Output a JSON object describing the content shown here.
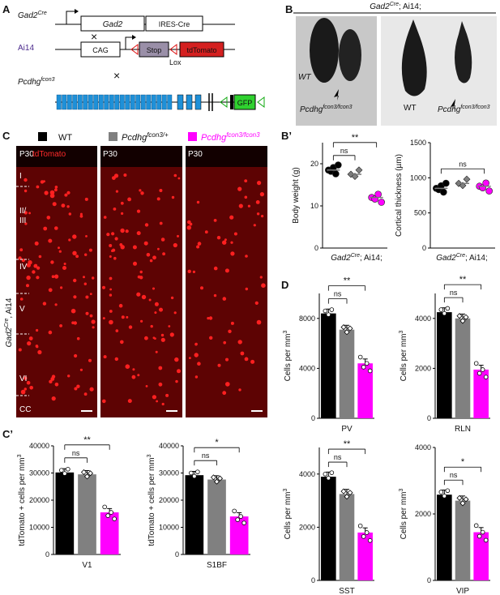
{
  "panels": {
    "A": "A",
    "B": "B",
    "Bp": "B’",
    "C": "C",
    "Cp": "C’",
    "D": "D"
  },
  "schematic": {
    "gad2_line": "Gad2",
    "gad2_sup": "Cre",
    "gad2_box": "Gad2",
    "ires_box": "IRES-Cre",
    "ai14_line": "Ai14",
    "cag_box": "CAG",
    "stop_box": "Stop",
    "tdtomato_box": "tdTomato",
    "lox": "Lox",
    "pcdh_line": "Pcdhg",
    "pcdh_sup": "fcon3",
    "gfp_box": "GFP",
    "cross": "×"
  },
  "photos": {
    "header": "Gad2",
    "header_sup": "Cre",
    "header_tail": "; Ai14;",
    "wt": "WT",
    "mut": "Pcdhg",
    "mut_sup": "fcon3/fcon3",
    "wt2": "WT",
    "mut2": "Pcdhg",
    "mut2_sup": "fcon3/fcon3"
  },
  "legend": {
    "wt": "WT",
    "het": "Pcdhg",
    "het_sup": "fcon3/+",
    "hom": "Pcdhg",
    "hom_sup": "fcon3/fcon3",
    "colors": {
      "wt": "#000000",
      "het": "#808080",
      "hom": "#ff00ff"
    }
  },
  "micrographs": {
    "age": "P30",
    "stain": "tdTomato",
    "side_label": "Gad2",
    "side_sup": "Cre",
    "side_tail": ", Ai14",
    "layers": [
      "I",
      "II/ III",
      "IV",
      "V",
      "VI",
      "CC"
    ]
  },
  "genotype_label": {
    "a": "Gad2",
    "sup": "Cre",
    "tail": "; Ai14;"
  },
  "chart_data": [
    {
      "id": "body_weight",
      "type": "scatter",
      "ylabel": "Body weight (g)",
      "ylim": [
        0,
        25
      ],
      "yticks": [
        "0",
        "10",
        "20"
      ],
      "categories": [
        "WT",
        "fcon3/+",
        "fcon3/fcon3"
      ],
      "means": [
        18.5,
        17.5,
        12
      ],
      "sig": [
        {
          "pair": [
            0,
            1
          ],
          "label": "ns"
        },
        {
          "pair": [
            0,
            2
          ],
          "label": "**"
        }
      ]
    },
    {
      "id": "cortical_thickness",
      "type": "scatter",
      "ylabel": "Cortical thickness (µm)",
      "ylim": [
        0,
        1500
      ],
      "yticks": [
        "0",
        "500",
        "1000",
        "1500"
      ],
      "categories": [
        "WT",
        "fcon3/+",
        "fcon3/fcon3"
      ],
      "means": [
        850,
        920,
        880
      ],
      "sig": [
        {
          "pair": [
            0,
            2
          ],
          "label": "ns"
        }
      ]
    },
    {
      "id": "V1",
      "type": "bar",
      "xlabel": "V1",
      "ylabel": "tdTomato + cells per mm",
      "ylabel_sup": "3",
      "ylim": [
        0,
        40000
      ],
      "yticks": [
        "0",
        "10000",
        "20000",
        "30000",
        "40000"
      ],
      "values": [
        30200,
        29500,
        15500
      ],
      "sig": [
        {
          "pair": [
            0,
            1
          ],
          "label": "ns"
        },
        {
          "pair": [
            0,
            2
          ],
          "label": "**"
        }
      ]
    },
    {
      "id": "S1BF",
      "type": "bar",
      "xlabel": "S1BF",
      "ylabel": "tdTomato + cells per mm",
      "ylabel_sup": "3",
      "ylim": [
        0,
        40000
      ],
      "yticks": [
        "0",
        "10000",
        "20000",
        "30000",
        "40000"
      ],
      "values": [
        29200,
        27600,
        14000
      ],
      "sig": [
        {
          "pair": [
            0,
            1
          ],
          "label": "ns"
        },
        {
          "pair": [
            0,
            2
          ],
          "label": "*"
        }
      ]
    },
    {
      "id": "PV",
      "type": "bar",
      "xlabel": "PV",
      "ylabel": "Cells per mm",
      "ylabel_sup": "3",
      "ylim": [
        0,
        10000
      ],
      "yticks": [
        "0",
        "4000",
        "8000"
      ],
      "values": [
        8400,
        7100,
        4400
      ],
      "sig": [
        {
          "pair": [
            0,
            1
          ],
          "label": "ns"
        },
        {
          "pair": [
            0,
            2
          ],
          "label": "**"
        }
      ]
    },
    {
      "id": "RLN",
      "type": "bar",
      "xlabel": "RLN",
      "ylabel": "Cells per mm",
      "ylabel_sup": "3",
      "ylim": [
        0,
        5000
      ],
      "yticks": [
        "0",
        "2000",
        "4000"
      ],
      "values": [
        4250,
        4000,
        1950
      ],
      "sig": [
        {
          "pair": [
            0,
            1
          ],
          "label": "ns"
        },
        {
          "pair": [
            0,
            2
          ],
          "label": "**"
        }
      ]
    },
    {
      "id": "SST",
      "type": "bar",
      "xlabel": "SST",
      "ylabel": "Cells per mm",
      "ylabel_sup": "3",
      "ylim": [
        0,
        5000
      ],
      "yticks": [
        "0",
        "2000",
        "4000"
      ],
      "values": [
        3900,
        3250,
        1800
      ],
      "sig": [
        {
          "pair": [
            0,
            1
          ],
          "label": "ns"
        },
        {
          "pair": [
            0,
            2
          ],
          "label": "**"
        }
      ]
    },
    {
      "id": "VIP",
      "type": "bar",
      "xlabel": "VIP",
      "ylabel": "Cells per mm",
      "ylabel_sup": "3",
      "ylim": [
        0,
        4000
      ],
      "yticks": [
        "0",
        "2000",
        "4000"
      ],
      "values": [
        2580,
        2400,
        1450
      ],
      "sig": [
        {
          "pair": [
            0,
            1
          ],
          "label": "ns"
        },
        {
          "pair": [
            0,
            2
          ],
          "label": "*"
        }
      ]
    }
  ]
}
